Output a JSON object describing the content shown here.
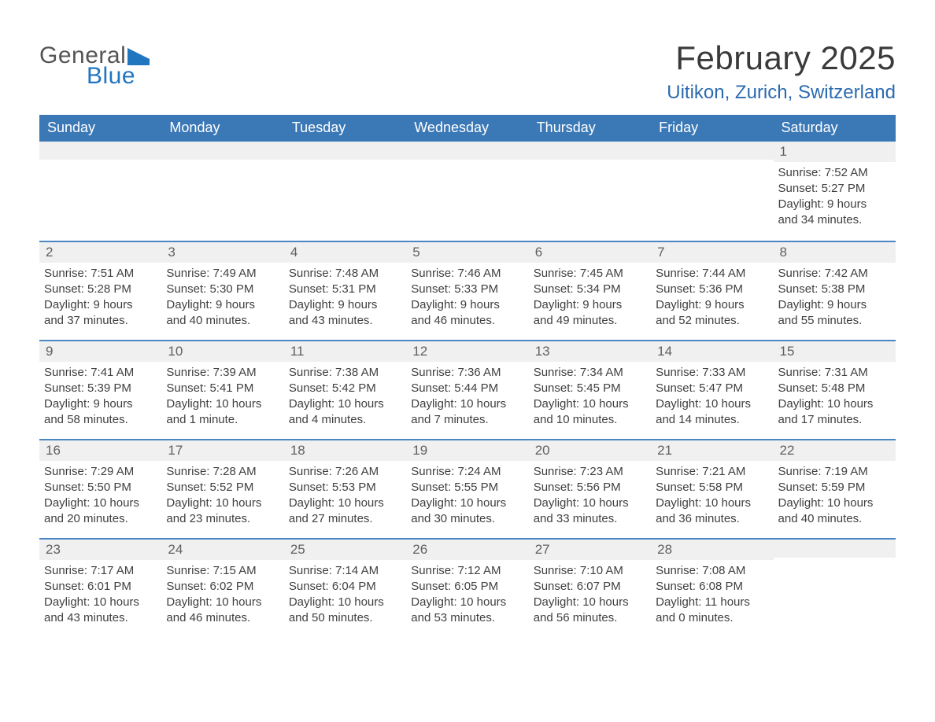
{
  "logo": {
    "word1": "General",
    "word2": "Blue"
  },
  "title": "February 2025",
  "location": "Uitikon, Zurich, Switzerland",
  "colors": {
    "header_bg": "#3b78b6",
    "accent_text": "#2b6ab0",
    "logo_blue": "#2176c0",
    "cell_gray": "#f0f0f0",
    "border_blue": "#4a86c4"
  },
  "weekdays": [
    "Sunday",
    "Monday",
    "Tuesday",
    "Wednesday",
    "Thursday",
    "Friday",
    "Saturday"
  ],
  "first_weekday_index": 6,
  "days": [
    {
      "n": 1,
      "sunrise": "7:52 AM",
      "sunset": "5:27 PM",
      "daylight": "9 hours and 34 minutes."
    },
    {
      "n": 2,
      "sunrise": "7:51 AM",
      "sunset": "5:28 PM",
      "daylight": "9 hours and 37 minutes."
    },
    {
      "n": 3,
      "sunrise": "7:49 AM",
      "sunset": "5:30 PM",
      "daylight": "9 hours and 40 minutes."
    },
    {
      "n": 4,
      "sunrise": "7:48 AM",
      "sunset": "5:31 PM",
      "daylight": "9 hours and 43 minutes."
    },
    {
      "n": 5,
      "sunrise": "7:46 AM",
      "sunset": "5:33 PM",
      "daylight": "9 hours and 46 minutes."
    },
    {
      "n": 6,
      "sunrise": "7:45 AM",
      "sunset": "5:34 PM",
      "daylight": "9 hours and 49 minutes."
    },
    {
      "n": 7,
      "sunrise": "7:44 AM",
      "sunset": "5:36 PM",
      "daylight": "9 hours and 52 minutes."
    },
    {
      "n": 8,
      "sunrise": "7:42 AM",
      "sunset": "5:38 PM",
      "daylight": "9 hours and 55 minutes."
    },
    {
      "n": 9,
      "sunrise": "7:41 AM",
      "sunset": "5:39 PM",
      "daylight": "9 hours and 58 minutes."
    },
    {
      "n": 10,
      "sunrise": "7:39 AM",
      "sunset": "5:41 PM",
      "daylight": "10 hours and 1 minute."
    },
    {
      "n": 11,
      "sunrise": "7:38 AM",
      "sunset": "5:42 PM",
      "daylight": "10 hours and 4 minutes."
    },
    {
      "n": 12,
      "sunrise": "7:36 AM",
      "sunset": "5:44 PM",
      "daylight": "10 hours and 7 minutes."
    },
    {
      "n": 13,
      "sunrise": "7:34 AM",
      "sunset": "5:45 PM",
      "daylight": "10 hours and 10 minutes."
    },
    {
      "n": 14,
      "sunrise": "7:33 AM",
      "sunset": "5:47 PM",
      "daylight": "10 hours and 14 minutes."
    },
    {
      "n": 15,
      "sunrise": "7:31 AM",
      "sunset": "5:48 PM",
      "daylight": "10 hours and 17 minutes."
    },
    {
      "n": 16,
      "sunrise": "7:29 AM",
      "sunset": "5:50 PM",
      "daylight": "10 hours and 20 minutes."
    },
    {
      "n": 17,
      "sunrise": "7:28 AM",
      "sunset": "5:52 PM",
      "daylight": "10 hours and 23 minutes."
    },
    {
      "n": 18,
      "sunrise": "7:26 AM",
      "sunset": "5:53 PM",
      "daylight": "10 hours and 27 minutes."
    },
    {
      "n": 19,
      "sunrise": "7:24 AM",
      "sunset": "5:55 PM",
      "daylight": "10 hours and 30 minutes."
    },
    {
      "n": 20,
      "sunrise": "7:23 AM",
      "sunset": "5:56 PM",
      "daylight": "10 hours and 33 minutes."
    },
    {
      "n": 21,
      "sunrise": "7:21 AM",
      "sunset": "5:58 PM",
      "daylight": "10 hours and 36 minutes."
    },
    {
      "n": 22,
      "sunrise": "7:19 AM",
      "sunset": "5:59 PM",
      "daylight": "10 hours and 40 minutes."
    },
    {
      "n": 23,
      "sunrise": "7:17 AM",
      "sunset": "6:01 PM",
      "daylight": "10 hours and 43 minutes."
    },
    {
      "n": 24,
      "sunrise": "7:15 AM",
      "sunset": "6:02 PM",
      "daylight": "10 hours and 46 minutes."
    },
    {
      "n": 25,
      "sunrise": "7:14 AM",
      "sunset": "6:04 PM",
      "daylight": "10 hours and 50 minutes."
    },
    {
      "n": 26,
      "sunrise": "7:12 AM",
      "sunset": "6:05 PM",
      "daylight": "10 hours and 53 minutes."
    },
    {
      "n": 27,
      "sunrise": "7:10 AM",
      "sunset": "6:07 PM",
      "daylight": "10 hours and 56 minutes."
    },
    {
      "n": 28,
      "sunrise": "7:08 AM",
      "sunset": "6:08 PM",
      "daylight": "11 hours and 0 minutes."
    }
  ],
  "labels": {
    "sunrise_prefix": "Sunrise: ",
    "sunset_prefix": "Sunset: ",
    "daylight_prefix": "Daylight: "
  }
}
